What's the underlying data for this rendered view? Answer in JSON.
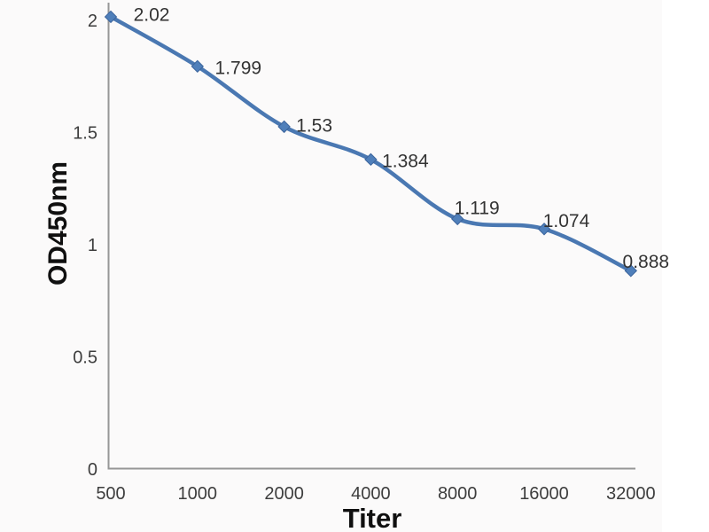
{
  "chart_data": {
    "type": "line",
    "title": "",
    "xlabel": "Titer",
    "ylabel": "OD450nm",
    "x_scale": "log2",
    "categories": [
      500,
      1000,
      2000,
      4000,
      8000,
      16000,
      32000
    ],
    "x_tick_labels": [
      "500",
      "1000",
      "2000",
      "4000",
      "8000",
      "16000",
      "32000"
    ],
    "series": [
      {
        "name": "OD450nm",
        "values": [
          2.02,
          1.799,
          1.53,
          1.384,
          1.119,
          1.074,
          0.888
        ],
        "point_labels": [
          "2.02",
          "1.799",
          "1.53",
          "1.384",
          "1.119",
          "1.074",
          "0.888"
        ]
      }
    ],
    "y_ticks": [
      0,
      0.5,
      1,
      1.5,
      2
    ],
    "y_tick_labels": [
      "0",
      "0.5",
      "1",
      "1.5",
      "2"
    ],
    "ylim": [
      0,
      2.08
    ],
    "grid": false,
    "legend": "none",
    "marker": "diamond",
    "line_smoothed": true,
    "colors": {
      "line": "#4a78b2",
      "marker_fill": "#4f7fba",
      "marker_edge": "#3c649c",
      "axis": "#969696",
      "tick_text": "#3d3d3d",
      "point_label_text": "#333333",
      "title_text": "#101010",
      "photo_background": "#fbfafa"
    }
  }
}
